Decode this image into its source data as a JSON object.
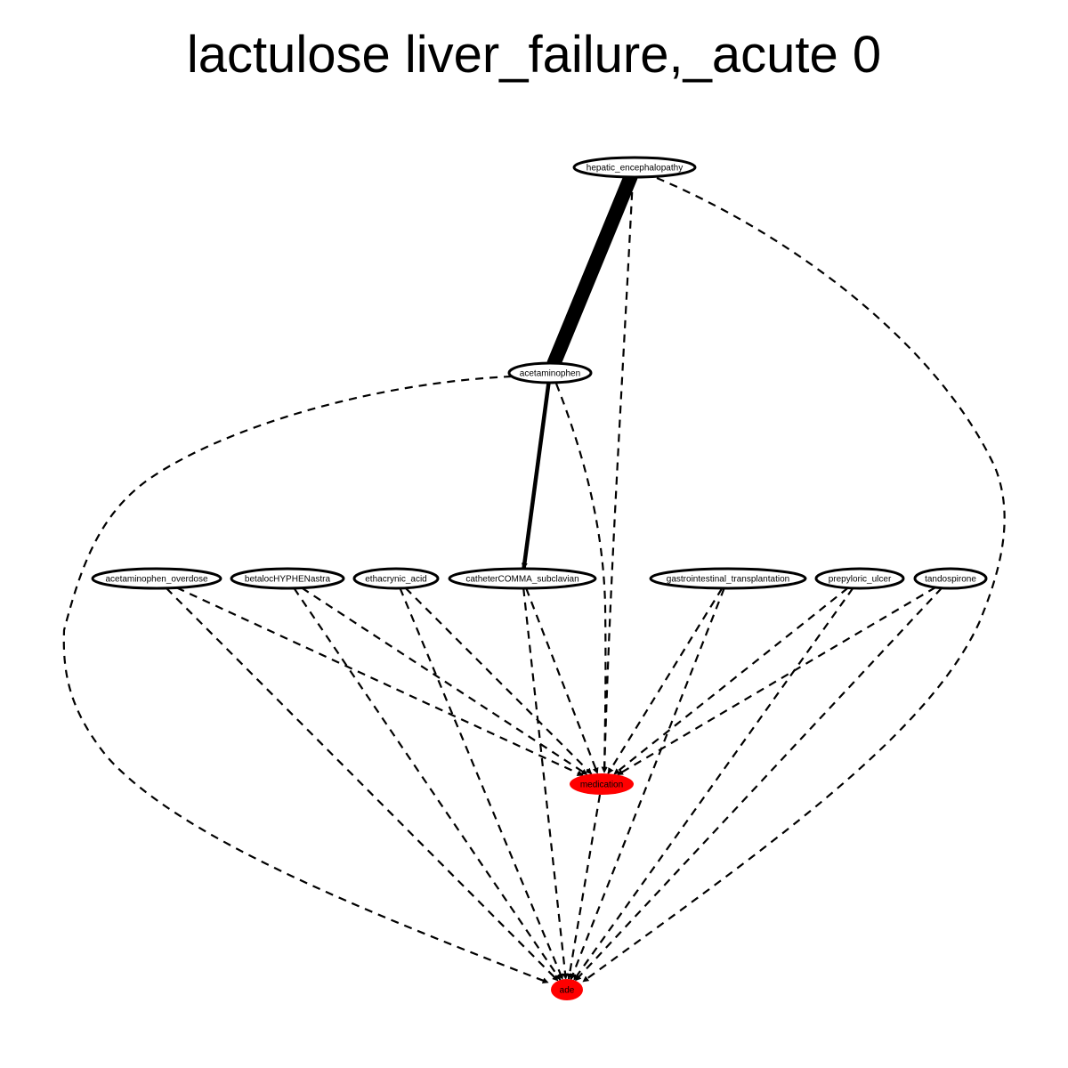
{
  "title": "lactulose liver_failure,_acute 0",
  "colors": {
    "highlight_fill": "#ff0000",
    "stroke": "#000000",
    "background": "#ffffff"
  },
  "nodes": [
    {
      "id": "hepatic_encephalopathy",
      "label": "hepatic_encephalopathy",
      "highlight": false
    },
    {
      "id": "acetaminophen",
      "label": "acetaminophen",
      "highlight": false
    },
    {
      "id": "acetaminophen_overdose",
      "label": "acetaminophen_overdose",
      "highlight": false
    },
    {
      "id": "betalocHYPHENastra",
      "label": "betalocHYPHENastra",
      "highlight": false
    },
    {
      "id": "ethacrynic_acid",
      "label": "ethacrynic_acid",
      "highlight": false
    },
    {
      "id": "catheterCOMMA_subclavian",
      "label": "catheterCOMMA_subclavian",
      "highlight": false
    },
    {
      "id": "gastrointestinal_transplantation",
      "label": "gastrointestinal_transplantation",
      "highlight": false
    },
    {
      "id": "prepyloric_ulcer",
      "label": "prepyloric_ulcer",
      "highlight": false
    },
    {
      "id": "tandospirone",
      "label": "tandospirone",
      "highlight": false
    },
    {
      "id": "medication",
      "label": "medication",
      "highlight": true
    },
    {
      "id": "ade",
      "label": "ade",
      "highlight": true
    }
  ],
  "edges": [
    {
      "from": "hepatic_encephalopathy",
      "to": "acetaminophen",
      "style": "solid",
      "weight": "heavy"
    },
    {
      "from": "hepatic_encephalopathy",
      "to": "medication",
      "style": "dashed",
      "weight": "normal"
    },
    {
      "from": "hepatic_encephalopathy",
      "to": "ade",
      "style": "dashed",
      "weight": "normal"
    },
    {
      "from": "acetaminophen",
      "to": "catheterCOMMA_subclavian",
      "style": "solid",
      "weight": "medium"
    },
    {
      "from": "acetaminophen",
      "to": "medication",
      "style": "dashed",
      "weight": "normal"
    },
    {
      "from": "acetaminophen",
      "to": "ade",
      "style": "dashed",
      "weight": "normal"
    },
    {
      "from": "acetaminophen_overdose",
      "to": "medication",
      "style": "dashed",
      "weight": "normal"
    },
    {
      "from": "acetaminophen_overdose",
      "to": "ade",
      "style": "dashed",
      "weight": "normal"
    },
    {
      "from": "betalocHYPHENastra",
      "to": "medication",
      "style": "dashed",
      "weight": "normal"
    },
    {
      "from": "betalocHYPHENastra",
      "to": "ade",
      "style": "dashed",
      "weight": "normal"
    },
    {
      "from": "ethacrynic_acid",
      "to": "medication",
      "style": "dashed",
      "weight": "normal"
    },
    {
      "from": "ethacrynic_acid",
      "to": "ade",
      "style": "dashed",
      "weight": "normal"
    },
    {
      "from": "catheterCOMMA_subclavian",
      "to": "medication",
      "style": "dashed",
      "weight": "normal"
    },
    {
      "from": "catheterCOMMA_subclavian",
      "to": "ade",
      "style": "dashed",
      "weight": "normal"
    },
    {
      "from": "gastrointestinal_transplantation",
      "to": "medication",
      "style": "dashed",
      "weight": "normal"
    },
    {
      "from": "gastrointestinal_transplantation",
      "to": "ade",
      "style": "dashed",
      "weight": "normal"
    },
    {
      "from": "prepyloric_ulcer",
      "to": "medication",
      "style": "dashed",
      "weight": "normal"
    },
    {
      "from": "prepyloric_ulcer",
      "to": "ade",
      "style": "dashed",
      "weight": "normal"
    },
    {
      "from": "tandospirone",
      "to": "medication",
      "style": "dashed",
      "weight": "normal"
    },
    {
      "from": "tandospirone",
      "to": "ade",
      "style": "dashed",
      "weight": "normal"
    },
    {
      "from": "medication",
      "to": "ade",
      "style": "dashed",
      "weight": "normal"
    }
  ]
}
